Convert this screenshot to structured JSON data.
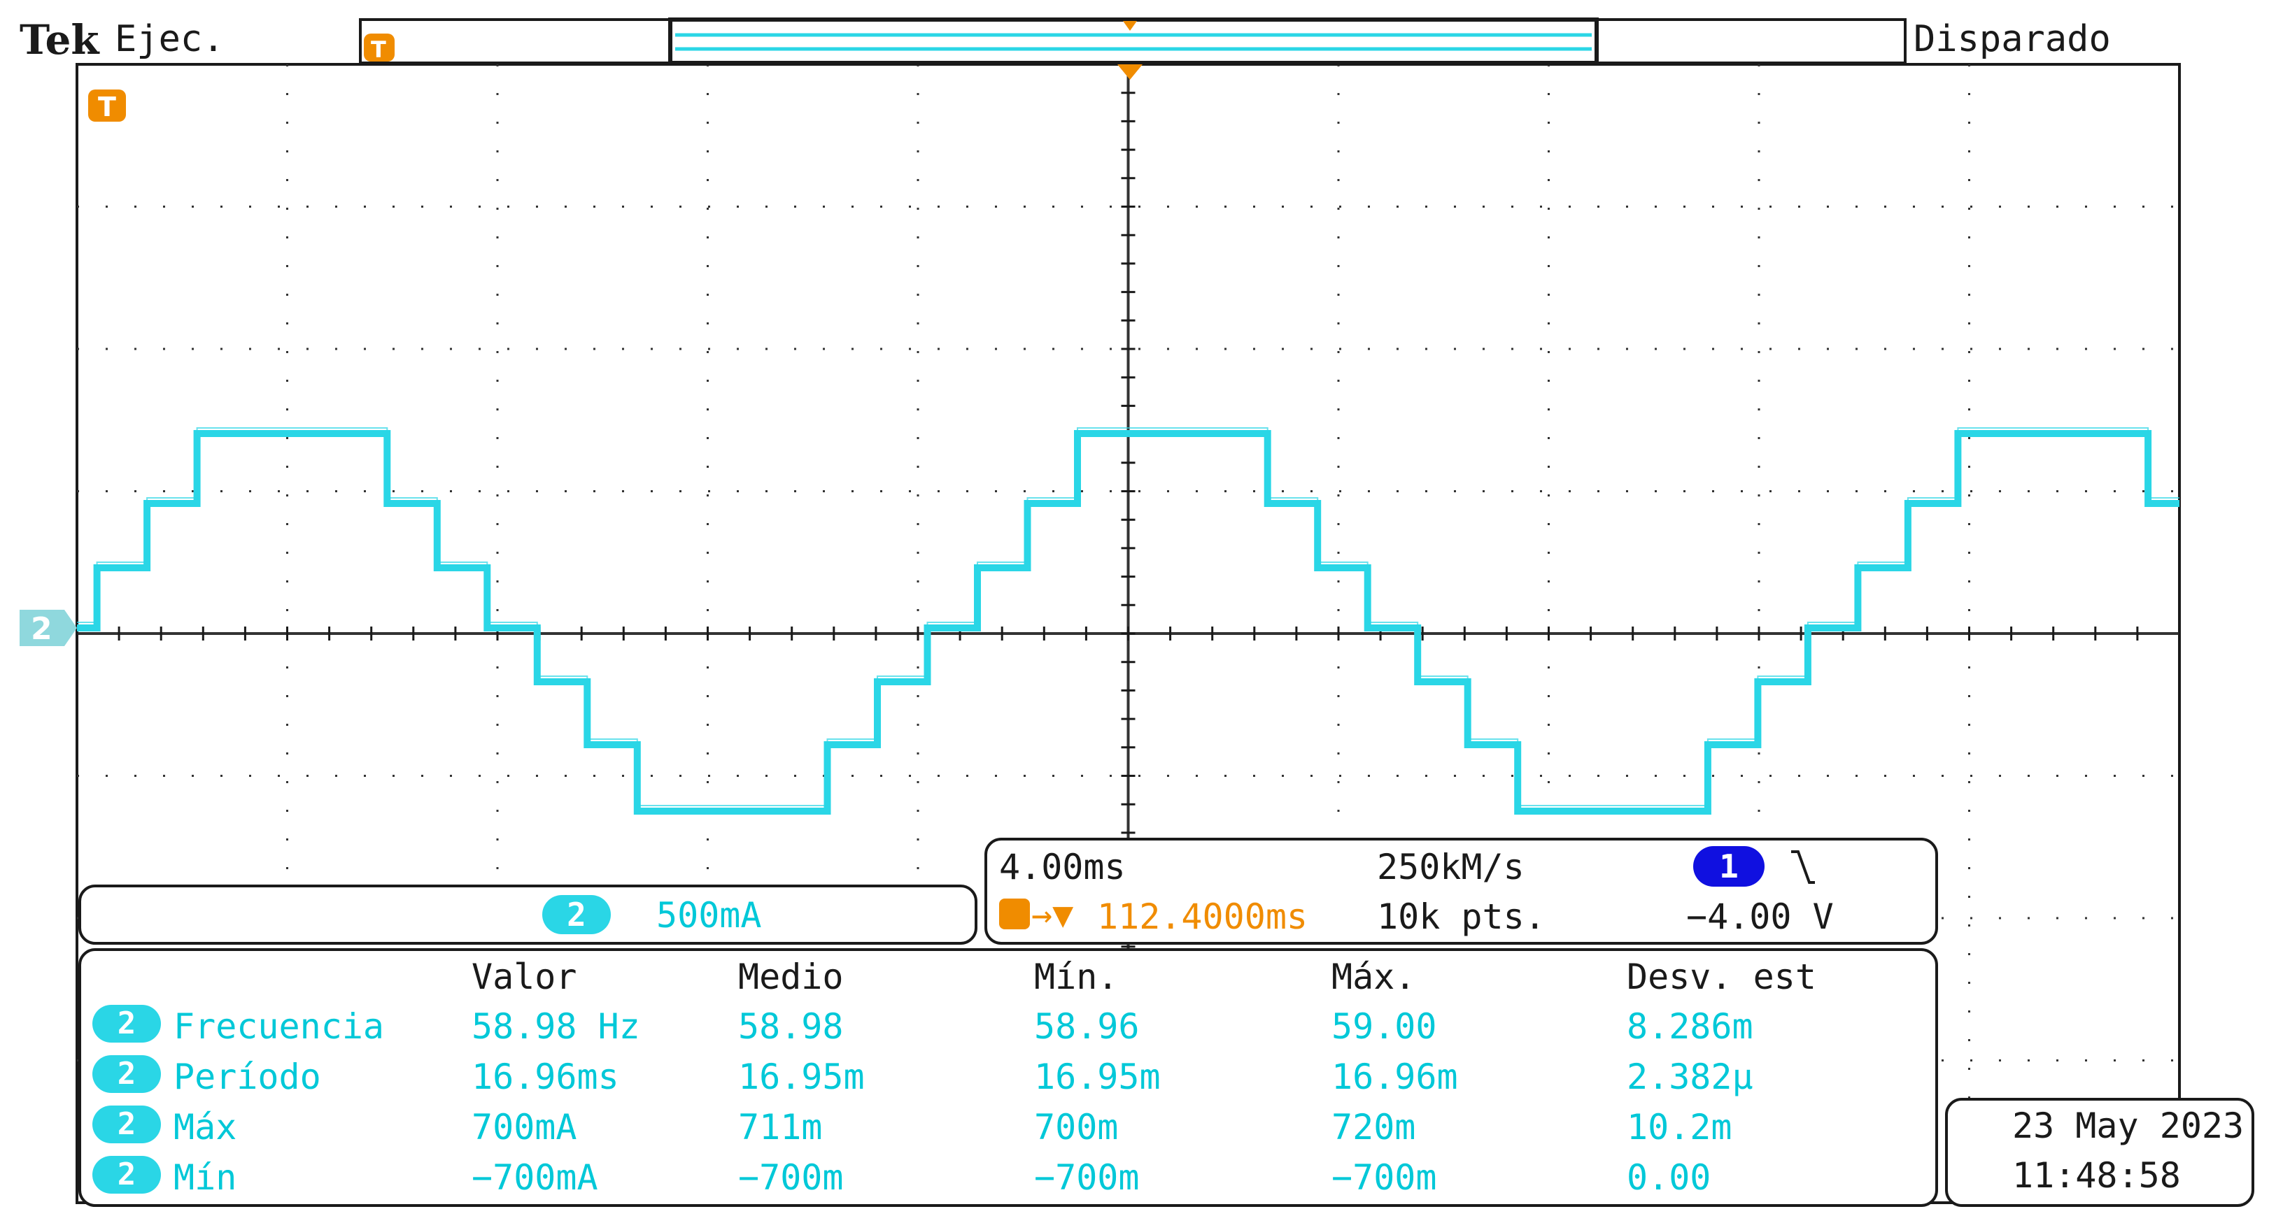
{
  "header": {
    "brand": "Tek",
    "run_state": "Ejec.",
    "trigger_state": "Disparado",
    "trigger_marker": "T"
  },
  "channel": {
    "number": "2",
    "scale": "500mA",
    "color": "#00c8d8"
  },
  "timebase": {
    "time_per_div": "4.00ms",
    "sample_rate": "250kM/s",
    "trigger_source": "1",
    "trigger_slope_icon": "falling-edge-icon",
    "trigger_position": "112.4000ms",
    "record_length": "10k pts.",
    "trigger_level": "−4.00 V"
  },
  "measurements": {
    "columns": [
      "Valor",
      "Medio",
      "Mín.",
      "Máx.",
      "Desv. est"
    ],
    "rows": [
      {
        "channel": "2",
        "name": "Frecuencia",
        "values": [
          "58.98 Hz",
          "58.98",
          "58.96",
          "59.00",
          "8.286m"
        ]
      },
      {
        "channel": "2",
        "name": "Período",
        "values": [
          "16.96ms",
          "16.95m",
          "16.95m",
          "16.96m",
          "2.382μ"
        ]
      },
      {
        "channel": "2",
        "name": "Máx",
        "values": [
          "700mA",
          "711m",
          "700m",
          "720m",
          "10.2m"
        ]
      },
      {
        "channel": "2",
        "name": "Mín",
        "values": [
          "−700mA",
          "−700m",
          "−700m",
          "−700m",
          "0.00"
        ]
      }
    ]
  },
  "datetime": {
    "date": "23 May  2023",
    "time": "11:48:58"
  },
  "colors": {
    "trace": "#2ad6e6",
    "trigger": "#f08c00",
    "trigger_source": "#1010e0"
  }
}
